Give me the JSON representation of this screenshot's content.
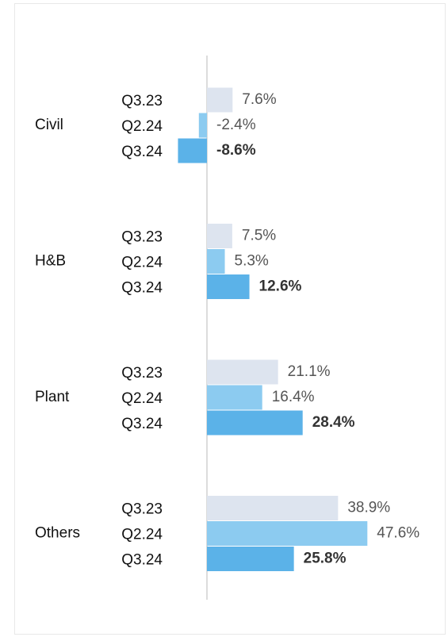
{
  "chart_data": {
    "type": "bar",
    "orientation": "horizontal",
    "categories": [
      "Civil",
      "H&B",
      "Plant",
      "Others"
    ],
    "series": [
      {
        "name": "Q3.23",
        "color": "#dde4ef",
        "values": [
          7.6,
          7.5,
          21.1,
          38.9
        ],
        "value_labels": [
          "7.6%",
          "7.5%",
          "21.1%",
          "38.9%"
        ]
      },
      {
        "name": "Q2.24",
        "color": "#8ccbf0",
        "values": [
          -2.4,
          5.3,
          16.4,
          47.6
        ],
        "value_labels": [
          "-2.4%",
          "5.3%",
          "16.4%",
          "47.6%"
        ]
      },
      {
        "name": "Q3.24",
        "color": "#5bb2e8",
        "values": [
          -8.6,
          12.6,
          28.4,
          25.8
        ],
        "value_labels": [
          "-8.6%",
          "12.6%",
          "28.4%",
          "25.8%"
        ]
      }
    ]
  }
}
